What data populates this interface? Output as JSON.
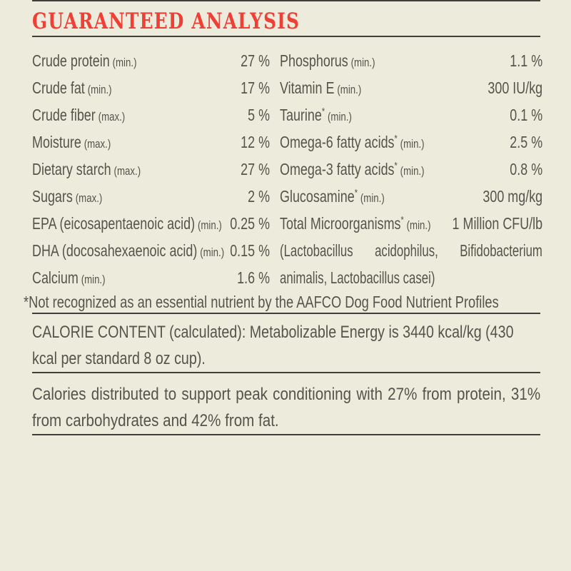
{
  "colors": {
    "background": "#edecdc",
    "title_red": "#ee4036",
    "text_gray": "#55534c",
    "rule_dark": "#403f3a"
  },
  "header": {
    "title": "GUARANTEED ANALYSIS"
  },
  "analysis_table": {
    "left_column": [
      {
        "label": "Crude protein",
        "qualifier": "(min.)",
        "value": "27 %"
      },
      {
        "label": "Crude fat",
        "qualifier": "(min.)",
        "value": "17 %"
      },
      {
        "label": "Crude fiber",
        "qualifier": "(max.)",
        "value": "5 %"
      },
      {
        "label": "Moisture",
        "qualifier": "(max.)",
        "value": "12 %"
      },
      {
        "label": "Dietary starch",
        "qualifier": "(max.)",
        "value": "27 %"
      },
      {
        "label": "Sugars",
        "qualifier": "(max.)",
        "value": "2 %"
      },
      {
        "label": "EPA (eicosapentaenoic acid)",
        "qualifier": "(min.)",
        "value": "0.25 %"
      },
      {
        "label": "DHA (docosahexaenoic acid)",
        "qualifier": "(min.)",
        "value": "0.15 %"
      },
      {
        "label": "Calcium",
        "qualifier": "(min.)",
        "value": "1.6 %"
      }
    ],
    "right_column": [
      {
        "label": "Phosphorus",
        "qualifier": "(min.)",
        "value": "1.1 %"
      },
      {
        "label": "Vitamin E",
        "qualifier": "(min.)",
        "value": "300 IU/kg"
      },
      {
        "label": "Taurine",
        "asterisk": "*",
        "qualifier": "(min.)",
        "value": "0.1 %"
      },
      {
        "label": "Omega-6 fatty acids",
        "asterisk": "*",
        "qualifier": "(min.)",
        "value": "2.5 %"
      },
      {
        "label": "Omega-3 fatty acids",
        "asterisk": "*",
        "qualifier": "(min.)",
        "value": "0.8 %"
      },
      {
        "label": "Glucosamine",
        "asterisk": "*",
        "qualifier": "(min.)",
        "value": "300 mg/kg"
      },
      {
        "label": "Total Microorganisms",
        "asterisk": "*",
        "qualifier": "(min.)",
        "value": "1 Million CFU/lb",
        "note": "(Lactobacillus acidophilus, Bifidobacterium animalis, Lactobacillus casei)"
      }
    ]
  },
  "footnote": "*Not recognized as an essential nutrient by the AAFCO Dog Food Nutrient Profiles",
  "calorie_content": "CALORIE CONTENT (calculated): Metabolizable Energy is 3440 kcal/kg (430 kcal per standard 8 oz cup).",
  "calorie_distribution": "Calories distributed to support peak conditioning with 27% from protein, 31% from carbohydrates and 42% from fat."
}
